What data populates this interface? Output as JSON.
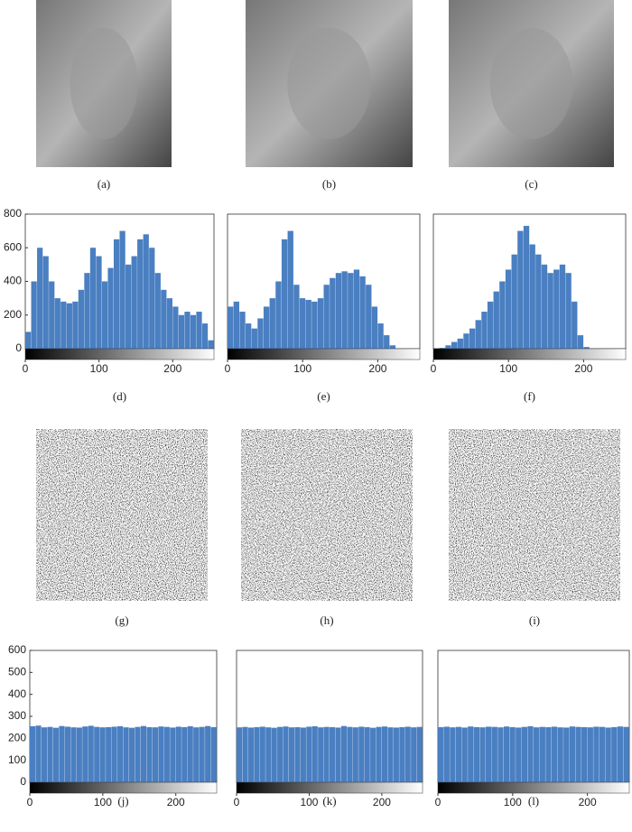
{
  "images": [
    {
      "caption": "(a)"
    },
    {
      "caption": "(b)"
    },
    {
      "caption": "(c)"
    },
    {
      "caption": "(g)"
    },
    {
      "caption": "(h)"
    },
    {
      "caption": "(i)"
    }
  ],
  "chart_data": [
    {
      "type": "histogram",
      "caption": "(d)",
      "color": "#4a7fc1",
      "bins": [
        0,
        8,
        16,
        24,
        32,
        40,
        48,
        56,
        64,
        72,
        80,
        88,
        96,
        104,
        112,
        120,
        128,
        136,
        144,
        152,
        160,
        168,
        176,
        184,
        192,
        200,
        208,
        216,
        224,
        232,
        240,
        248,
        256
      ],
      "values": [
        100,
        400,
        600,
        550,
        400,
        300,
        280,
        270,
        280,
        350,
        450,
        600,
        550,
        400,
        480,
        650,
        700,
        500,
        550,
        650,
        680,
        600,
        450,
        350,
        300,
        250,
        200,
        220,
        200,
        220,
        150,
        50
      ],
      "xlim": [
        0,
        256
      ],
      "xticks": [
        0,
        100,
        200
      ],
      "ylim": [
        0,
        800
      ],
      "yticks": [
        0,
        200,
        400,
        600,
        800
      ]
    },
    {
      "type": "histogram",
      "caption": "(e)",
      "color": "#4a7fc1",
      "bins": [
        0,
        8,
        16,
        24,
        32,
        40,
        48,
        56,
        64,
        72,
        80,
        88,
        96,
        104,
        112,
        120,
        128,
        136,
        144,
        152,
        160,
        168,
        176,
        184,
        192,
        200,
        208,
        216,
        224,
        232,
        240,
        248,
        256
      ],
      "values": [
        250,
        280,
        220,
        150,
        120,
        180,
        250,
        300,
        400,
        650,
        700,
        380,
        300,
        290,
        280,
        300,
        380,
        420,
        450,
        460,
        450,
        470,
        430,
        380,
        250,
        150,
        80,
        20,
        0,
        0,
        0,
        0
      ],
      "xlim": [
        0,
        256
      ],
      "xticks": [
        0,
        100,
        200
      ],
      "ylim": [
        0,
        800
      ]
    },
    {
      "type": "histogram",
      "caption": "(f)",
      "color": "#4a7fc1",
      "bins": [
        0,
        8,
        16,
        24,
        32,
        40,
        48,
        56,
        64,
        72,
        80,
        88,
        96,
        104,
        112,
        120,
        128,
        136,
        144,
        152,
        160,
        168,
        176,
        184,
        192,
        200,
        208,
        216,
        224,
        232,
        240,
        248,
        256
      ],
      "values": [
        0,
        5,
        20,
        40,
        60,
        90,
        120,
        170,
        220,
        280,
        340,
        400,
        470,
        560,
        700,
        730,
        620,
        560,
        500,
        450,
        470,
        500,
        450,
        280,
        80,
        10,
        0,
        0,
        0,
        0,
        0,
        0
      ],
      "xlim": [
        0,
        256
      ],
      "xticks": [
        0,
        100,
        200
      ],
      "ylim": [
        0,
        800
      ]
    },
    {
      "type": "histogram",
      "caption": "(j)",
      "color": "#4a7fc1",
      "bins": [
        0,
        8,
        16,
        24,
        32,
        40,
        48,
        56,
        64,
        72,
        80,
        88,
        96,
        104,
        112,
        120,
        128,
        136,
        144,
        152,
        160,
        168,
        176,
        184,
        192,
        200,
        208,
        216,
        224,
        232,
        240,
        248,
        256
      ],
      "values": [
        255,
        258,
        250,
        252,
        248,
        256,
        253,
        250,
        249,
        254,
        257,
        252,
        250,
        251,
        253,
        255,
        250,
        248,
        252,
        256,
        251,
        250,
        254,
        252,
        249,
        253,
        251,
        255,
        250,
        252,
        256,
        251
      ],
      "xlim": [
        0,
        256
      ],
      "xticks": [
        0,
        100,
        200
      ],
      "ylim": [
        0,
        600
      ],
      "yticks": [
        0,
        100,
        200,
        300,
        400,
        500,
        600
      ]
    },
    {
      "type": "histogram",
      "caption": "(k)",
      "color": "#4a7fc1",
      "bins": [
        0,
        8,
        16,
        24,
        32,
        40,
        48,
        56,
        64,
        72,
        80,
        88,
        96,
        104,
        112,
        120,
        128,
        136,
        144,
        152,
        160,
        168,
        176,
        184,
        192,
        200,
        208,
        216,
        224,
        232,
        240,
        248,
        256
      ],
      "values": [
        250,
        252,
        249,
        251,
        253,
        250,
        248,
        252,
        254,
        250,
        251,
        249,
        253,
        255,
        250,
        252,
        251,
        249,
        256,
        252,
        250,
        253,
        251,
        248,
        252,
        254,
        250,
        249,
        251,
        253,
        250,
        252
      ],
      "xlim": [
        0,
        256
      ],
      "xticks": [
        0,
        100,
        200
      ],
      "ylim": [
        0,
        600
      ]
    },
    {
      "type": "histogram",
      "caption": "(l)",
      "color": "#4a7fc1",
      "bins": [
        0,
        8,
        16,
        24,
        32,
        40,
        48,
        56,
        64,
        72,
        80,
        88,
        96,
        104,
        112,
        120,
        128,
        136,
        144,
        152,
        160,
        168,
        176,
        184,
        192,
        200,
        208,
        216,
        224,
        232,
        240,
        248,
        256
      ],
      "values": [
        251,
        253,
        250,
        252,
        249,
        254,
        251,
        250,
        253,
        252,
        250,
        254,
        251,
        249,
        252,
        255,
        250,
        252,
        251,
        253,
        250,
        249,
        254,
        252,
        251,
        250,
        253,
        252,
        249,
        251,
        254,
        252
      ],
      "xlim": [
        0,
        256
      ],
      "xticks": [
        0,
        100,
        200
      ],
      "ylim": [
        0,
        600
      ]
    }
  ]
}
